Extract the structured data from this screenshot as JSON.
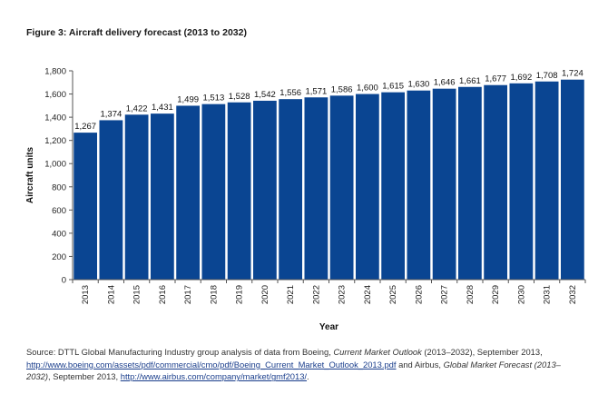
{
  "figure_title": "Figure 3: Aircraft delivery forecast (2013 to 2032)",
  "chart_data": {
    "type": "bar",
    "categories": [
      "2013",
      "2014",
      "2015",
      "2016",
      "2017",
      "2018",
      "2019",
      "2020",
      "2021",
      "2022",
      "2023",
      "2024",
      "2025",
      "2026",
      "2027",
      "2028",
      "2029",
      "2030",
      "2031",
      "2032"
    ],
    "values": [
      1267,
      1374,
      1422,
      1431,
      1499,
      1513,
      1528,
      1542,
      1556,
      1571,
      1586,
      1600,
      1615,
      1630,
      1646,
      1661,
      1677,
      1692,
      1708,
      1724
    ],
    "data_labels": [
      "1,267",
      "1,374",
      "1,422",
      "1,431",
      "1,499",
      "1,513",
      "1,528",
      "1,542",
      "1,556",
      "1,571",
      "1,586",
      "1,600",
      "1,615",
      "1,630",
      "1,646",
      "1,661",
      "1,677",
      "1,692",
      "1,708",
      "1,724"
    ],
    "xlabel": "Year",
    "ylabel": "Aircraft units",
    "ylim": [
      0,
      1800
    ],
    "yticks": [
      0,
      200,
      400,
      600,
      800,
      1000,
      1200,
      1400,
      1600,
      1800
    ],
    "ytick_labels": [
      "0",
      "200",
      "400",
      "600",
      "800",
      "1,000",
      "1,200",
      "1,400",
      "1,600",
      "1,800"
    ],
    "bar_color": "#0a4592",
    "grid": false,
    "legend": "none"
  },
  "source": {
    "prefix": "Source: DTTL Global Manufacturing Industry group analysis of data from Boeing, ",
    "boeing_title": "Current Market Outlook",
    "boeing_mid": " (2013–2032), September 2013, ",
    "boeing_link": "http://www.boeing.com/assets/pdf/commercial/cmo/pdf/Boeing_Current_Market_Outlook_2013.pdf",
    "airbus_prefix": " and Airbus, ",
    "airbus_title": "Global Market Forecast (2013–2032)",
    "airbus_mid": ", September 2013, ",
    "airbus_link": "http://www.airbus.com/company/market/gmf2013/",
    "suffix": "."
  }
}
